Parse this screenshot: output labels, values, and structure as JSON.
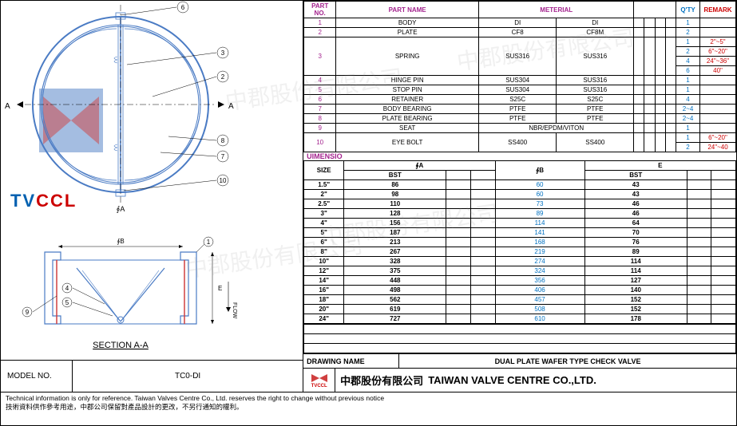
{
  "model": {
    "label": "MODEL NO.",
    "value": "TC0-DI"
  },
  "parts_header": {
    "partno": "PART NO.",
    "partname": "PART NAME",
    "material": "METERIAL",
    "qty": "Q'TY",
    "remark": "REMARK"
  },
  "parts": [
    {
      "no": "1",
      "name": "BODY",
      "m1": "DI",
      "m2": "DI",
      "qty": "1",
      "remark": ""
    },
    {
      "no": "2",
      "name": "PLATE",
      "m1": "CF8",
      "m2": "CF8M",
      "qty": "2",
      "remark": ""
    },
    {
      "no": "3",
      "name": "SPRING",
      "m1": "SUS316",
      "m2": "SUS316",
      "qty_rows": [
        {
          "qty": "1",
          "remark": "2\"~5\""
        },
        {
          "qty": "2",
          "remark": "6\"~20\""
        },
        {
          "qty": "4",
          "remark": "24\"~36\""
        },
        {
          "qty": "6",
          "remark": "40\""
        }
      ]
    },
    {
      "no": "4",
      "name": "HINGE PIN",
      "m1": "SUS304",
      "m2": "SUS316",
      "qty": "1",
      "remark": ""
    },
    {
      "no": "5",
      "name": "STOP PIN",
      "m1": "SUS304",
      "m2": "SUS316",
      "qty": "1",
      "remark": ""
    },
    {
      "no": "6",
      "name": "RETAINER",
      "m1": "S25C",
      "m2": "S25C",
      "qty": "4",
      "remark": ""
    },
    {
      "no": "7",
      "name": "BODY BEARING",
      "m1": "PTFE",
      "m2": "PTFE",
      "qty": "2~4",
      "remark": ""
    },
    {
      "no": "8",
      "name": "PLATE BEARING",
      "m1": "PTFE",
      "m2": "PTFE",
      "qty": "2~4",
      "remark": ""
    },
    {
      "no": "9",
      "name": "SEAT",
      "m1": "NBR/EPDM/VITON",
      "m2": "",
      "span": true,
      "qty": "1",
      "remark": ""
    },
    {
      "no": "10",
      "name": "EYE BOLT",
      "m1": "SS400",
      "m2": "SS400",
      "qty_rows": [
        {
          "qty": "1",
          "remark": "6\"~20\""
        },
        {
          "qty": "2",
          "remark": "24\"~40"
        }
      ]
    }
  ],
  "dim_label": "UIMENSIO",
  "dim_header": {
    "size": "SIZE",
    "a": "∮A",
    "bst_a": "BST",
    "b": "∮B",
    "e": "E",
    "bst_e": "BST"
  },
  "dims": [
    {
      "size": "1.5\"",
      "a": "86",
      "b": "60",
      "e": "43"
    },
    {
      "size": "2\"",
      "a": "98",
      "b": "60",
      "e": "43"
    },
    {
      "size": "2.5\"",
      "a": "110",
      "b": "73",
      "e": "46"
    },
    {
      "size": "3\"",
      "a": "128",
      "b": "89",
      "e": "46"
    },
    {
      "size": "4\"",
      "a": "156",
      "b": "114",
      "e": "64"
    },
    {
      "size": "5\"",
      "a": "187",
      "b": "141",
      "e": "70"
    },
    {
      "size": "6\"",
      "a": "213",
      "b": "168",
      "e": "76"
    },
    {
      "size": "8\"",
      "a": "267",
      "b": "219",
      "e": "89"
    },
    {
      "size": "10\"",
      "a": "328",
      "b": "274",
      "e": "114"
    },
    {
      "size": "12\"",
      "a": "375",
      "b": "324",
      "e": "114"
    },
    {
      "size": "14\"",
      "a": "448",
      "b": "356",
      "e": "127"
    },
    {
      "size": "16\"",
      "a": "498",
      "b": "406",
      "e": "140"
    },
    {
      "size": "18\"",
      "a": "562",
      "b": "457",
      "e": "152"
    },
    {
      "size": "20\"",
      "a": "619",
      "b": "508",
      "e": "152"
    },
    {
      "size": "24\"",
      "a": "727",
      "b": "610",
      "e": "178"
    }
  ],
  "drawing_name": {
    "label": "DRAWING NAME",
    "value": "DUAL PLATE WAFER TYPE CHECK VALVE"
  },
  "company": {
    "logo": "TVCCL",
    "cn": "中郡股份有限公司",
    "en": "TAIWAN VALVE CENTRE CO.,LTD."
  },
  "footer": {
    "en": "Technical information is only for reference. Taiwan Valves Centre Co., Ltd. reserves the right to change without previous notice",
    "cn": "技術資料供作參考用途，中郡公司保留對產品設計的更改，不另行通知的權利。"
  },
  "section_label": "SECTION A-A",
  "flow_label": "FLOW",
  "dia_a": "∮A",
  "dia_b": "∮B",
  "watermark": "中郡股份有限公司",
  "callouts": [
    "6",
    "3",
    "2",
    "8",
    "7",
    "10",
    "4",
    "5",
    "9"
  ],
  "colors": {
    "magenta": "#a3238e",
    "blue": "#0070c0",
    "red": "#c00",
    "body_blue": "#4a7bc4",
    "seat_red": "#d04040"
  }
}
